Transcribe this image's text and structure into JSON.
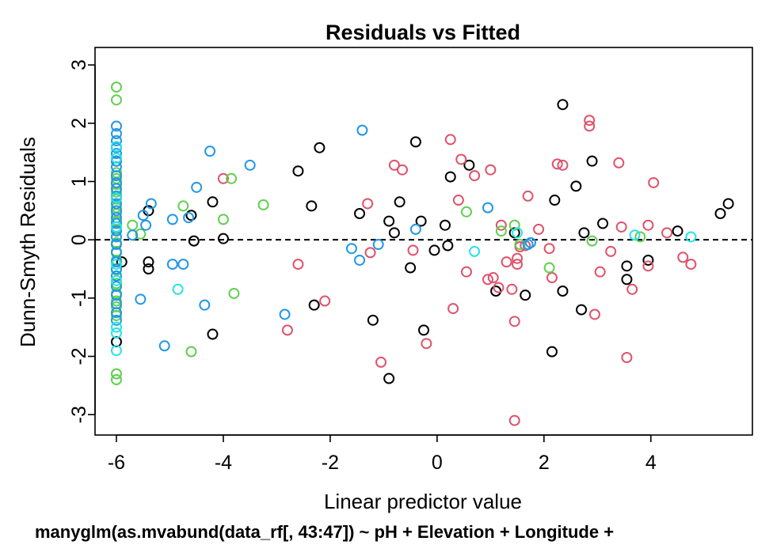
{
  "chart_data": {
    "type": "scatter",
    "title": "Residuals vs Fitted",
    "subtitle": "manyglm(as.mvabund(data_rf[, 43:47]) ~ pH + Elevation + Longitude +",
    "xlabel": "Linear predictor value",
    "ylabel": "Dunn-Smyth Residuals",
    "xlim": [
      -6.4,
      5.9
    ],
    "ylim": [
      -3.35,
      3.3
    ],
    "xticks": [
      -6,
      -4,
      -2,
      0,
      2,
      4
    ],
    "yticks": [
      -3,
      -2,
      -1,
      0,
      1,
      2,
      3
    ],
    "reference_line": {
      "y": 0,
      "style": "dashed"
    },
    "grid": false,
    "colors": {
      "black": "#000000",
      "red": "#DF536B",
      "green": "#61D04F",
      "blue": "#2297E6",
      "cyan": "#28E2E5"
    },
    "series": [
      {
        "color": "black",
        "points": [
          [
            -6,
            1.35
          ],
          [
            -6,
            -1.75
          ],
          [
            -5.9,
            -0.38
          ],
          [
            -5.4,
            0.5
          ],
          [
            -5.4,
            -0.38
          ],
          [
            -5.4,
            -0.5
          ],
          [
            -4.6,
            0.42
          ],
          [
            -4.55,
            -0.02
          ],
          [
            -4.2,
            0.65
          ],
          [
            -4.2,
            -1.62
          ],
          [
            -4.0,
            0.02
          ],
          [
            -2.6,
            1.18
          ],
          [
            -2.35,
            0.58
          ],
          [
            -2.3,
            -1.12
          ],
          [
            -2.2,
            1.58
          ],
          [
            -1.45,
            0.45
          ],
          [
            -1.2,
            -1.38
          ],
          [
            -0.9,
            0.32
          ],
          [
            -0.9,
            -2.38
          ],
          [
            -0.8,
            0.12
          ],
          [
            -0.7,
            0.65
          ],
          [
            -0.5,
            -0.48
          ],
          [
            -0.4,
            1.68
          ],
          [
            -0.3,
            0.32
          ],
          [
            -0.25,
            -1.55
          ],
          [
            -0.05,
            -0.18
          ],
          [
            0.15,
            0.25
          ],
          [
            0.2,
            -0.1
          ],
          [
            0.25,
            1.08
          ],
          [
            0.6,
            1.28
          ],
          [
            1.1,
            -0.88
          ],
          [
            1.45,
            0.12
          ],
          [
            1.65,
            -0.95
          ],
          [
            2.15,
            -1.92
          ],
          [
            2.2,
            0.68
          ],
          [
            2.35,
            -0.88
          ],
          [
            2.35,
            2.32
          ],
          [
            2.6,
            0.92
          ],
          [
            2.7,
            -1.2
          ],
          [
            2.75,
            0.12
          ],
          [
            2.9,
            1.35
          ],
          [
            3.1,
            0.28
          ],
          [
            3.55,
            -0.68
          ],
          [
            3.55,
            -0.45
          ],
          [
            3.95,
            -0.35
          ],
          [
            4.5,
            0.15
          ],
          [
            5.3,
            0.45
          ],
          [
            5.45,
            0.62
          ]
        ]
      },
      {
        "color": "red",
        "points": [
          [
            -4.0,
            1.05
          ],
          [
            -2.6,
            -0.42
          ],
          [
            -2.1,
            -1.05
          ],
          [
            -1.3,
            0.62
          ],
          [
            -1.25,
            -0.22
          ],
          [
            -1.05,
            -2.1
          ],
          [
            -0.8,
            1.28
          ],
          [
            -0.65,
            1.2
          ],
          [
            -0.45,
            -0.18
          ],
          [
            -0.2,
            -1.78
          ],
          [
            0.25,
            1.72
          ],
          [
            0.3,
            -1.18
          ],
          [
            0.4,
            0.68
          ],
          [
            0.45,
            1.38
          ],
          [
            0.55,
            -0.55
          ],
          [
            0.7,
            1.1
          ],
          [
            0.95,
            -0.68
          ],
          [
            1.0,
            1.2
          ],
          [
            1.05,
            -0.65
          ],
          [
            1.15,
            -0.82
          ],
          [
            1.2,
            0.25
          ],
          [
            1.3,
            -0.38
          ],
          [
            1.4,
            -0.85
          ],
          [
            1.45,
            -1.4
          ],
          [
            1.45,
            -3.1
          ],
          [
            1.5,
            -0.32
          ],
          [
            1.5,
            -0.42
          ],
          [
            1.55,
            -0.12
          ],
          [
            1.65,
            -0.1
          ],
          [
            1.7,
            0.75
          ],
          [
            1.9,
            0.18
          ],
          [
            2.1,
            -0.15
          ],
          [
            2.15,
            -0.65
          ],
          [
            2.25,
            1.3
          ],
          [
            2.35,
            1.28
          ],
          [
            2.85,
            2.05
          ],
          [
            2.85,
            1.95
          ],
          [
            2.95,
            -1.28
          ],
          [
            3.05,
            -0.55
          ],
          [
            3.25,
            -0.2
          ],
          [
            3.4,
            1.32
          ],
          [
            3.45,
            0.22
          ],
          [
            3.55,
            -2.02
          ],
          [
            3.65,
            -0.85
          ],
          [
            3.95,
            -0.45
          ],
          [
            3.95,
            0.25
          ],
          [
            4.05,
            0.98
          ],
          [
            4.3,
            0.12
          ],
          [
            4.6,
            -0.3
          ],
          [
            4.75,
            -0.42
          ],
          [
            -2.8,
            -1.55
          ]
        ]
      },
      {
        "color": "green",
        "points": [
          [
            -6,
            2.62
          ],
          [
            -6,
            2.4
          ],
          [
            -6,
            1.15
          ],
          [
            -6,
            1.05
          ],
          [
            -6,
            0.95
          ],
          [
            -6,
            0.82
          ],
          [
            -6,
            0.7
          ],
          [
            -6,
            0.55
          ],
          [
            -6,
            0.45
          ],
          [
            -6,
            0.32
          ],
          [
            -6,
            0.18
          ],
          [
            -6,
            -0.05
          ],
          [
            -6,
            -0.2
          ],
          [
            -6,
            -0.35
          ],
          [
            -6,
            -0.52
          ],
          [
            -6,
            -0.75
          ],
          [
            -6,
            -0.92
          ],
          [
            -6,
            -1.05
          ],
          [
            -6,
            -1.15
          ],
          [
            -6,
            -1.3
          ],
          [
            -6,
            -2.3
          ],
          [
            -6,
            -2.4
          ],
          [
            -5.7,
            0.25
          ],
          [
            -5.55,
            0.1
          ],
          [
            -4.75,
            0.58
          ],
          [
            -4.6,
            -1.92
          ],
          [
            -4.0,
            0.35
          ],
          [
            -3.85,
            1.05
          ],
          [
            -3.8,
            -0.92
          ],
          [
            -3.25,
            0.6
          ],
          [
            0.55,
            0.48
          ],
          [
            1.2,
            0.15
          ],
          [
            1.45,
            0.25
          ],
          [
            1.55,
            -0.08
          ],
          [
            2.1,
            -0.48
          ],
          [
            2.9,
            -0.02
          ],
          [
            3.8,
            0.05
          ]
        ]
      },
      {
        "color": "blue",
        "points": [
          [
            -6,
            1.95
          ],
          [
            -6,
            1.82
          ],
          [
            -6,
            1.7
          ],
          [
            -6,
            1.58
          ],
          [
            -6,
            1.48
          ],
          [
            -6,
            1.35
          ],
          [
            -6,
            1.25
          ],
          [
            -6,
            1.1
          ],
          [
            -6,
            0.98
          ],
          [
            -6,
            0.88
          ],
          [
            -6,
            0.75
          ],
          [
            -6,
            0.62
          ],
          [
            -6,
            0.5
          ],
          [
            -6,
            0.38
          ],
          [
            -6,
            0.28
          ],
          [
            -6,
            0.15
          ],
          [
            -6,
            0.05
          ],
          [
            -6,
            -0.08
          ],
          [
            -6,
            -0.22
          ],
          [
            -6,
            -0.38
          ],
          [
            -6,
            -0.5
          ],
          [
            -6,
            -0.62
          ],
          [
            -6,
            -0.8
          ],
          [
            -6,
            -0.95
          ],
          [
            -6,
            -1.1
          ],
          [
            -6,
            -1.25
          ],
          [
            -6,
            -1.38
          ],
          [
            -5.7,
            0.08
          ],
          [
            -5.55,
            -1.02
          ],
          [
            -5.5,
            0.42
          ],
          [
            -5.45,
            0.25
          ],
          [
            -5.35,
            0.62
          ],
          [
            -5.1,
            -1.82
          ],
          [
            -4.95,
            0.35
          ],
          [
            -4.95,
            -0.42
          ],
          [
            -4.75,
            -0.42
          ],
          [
            -4.65,
            0.38
          ],
          [
            -4.5,
            0.9
          ],
          [
            -4.35,
            -1.12
          ],
          [
            -4.25,
            1.52
          ],
          [
            -3.5,
            1.28
          ],
          [
            -2.85,
            -1.28
          ],
          [
            -1.6,
            -0.15
          ],
          [
            -1.45,
            -0.35
          ],
          [
            -1.4,
            1.88
          ],
          [
            -1.1,
            -0.08
          ],
          [
            -0.4,
            0.18
          ],
          [
            0.95,
            0.55
          ],
          [
            1.7,
            -0.08
          ],
          [
            1.75,
            -0.05
          ]
        ]
      },
      {
        "color": "cyan",
        "points": [
          [
            -6,
            1.6
          ],
          [
            -6,
            1.4
          ],
          [
            -6,
            0.72
          ],
          [
            -6,
            0.22
          ],
          [
            -6,
            -0.42
          ],
          [
            -6,
            -0.7
          ],
          [
            -6,
            -1.5
          ],
          [
            -6,
            -1.6
          ],
          [
            -6,
            -1.9
          ],
          [
            -4.85,
            -0.85
          ],
          [
            0.7,
            -0.2
          ],
          [
            1.5,
            0.12
          ],
          [
            3.7,
            0.08
          ],
          [
            4.75,
            0.05
          ]
        ]
      }
    ]
  }
}
